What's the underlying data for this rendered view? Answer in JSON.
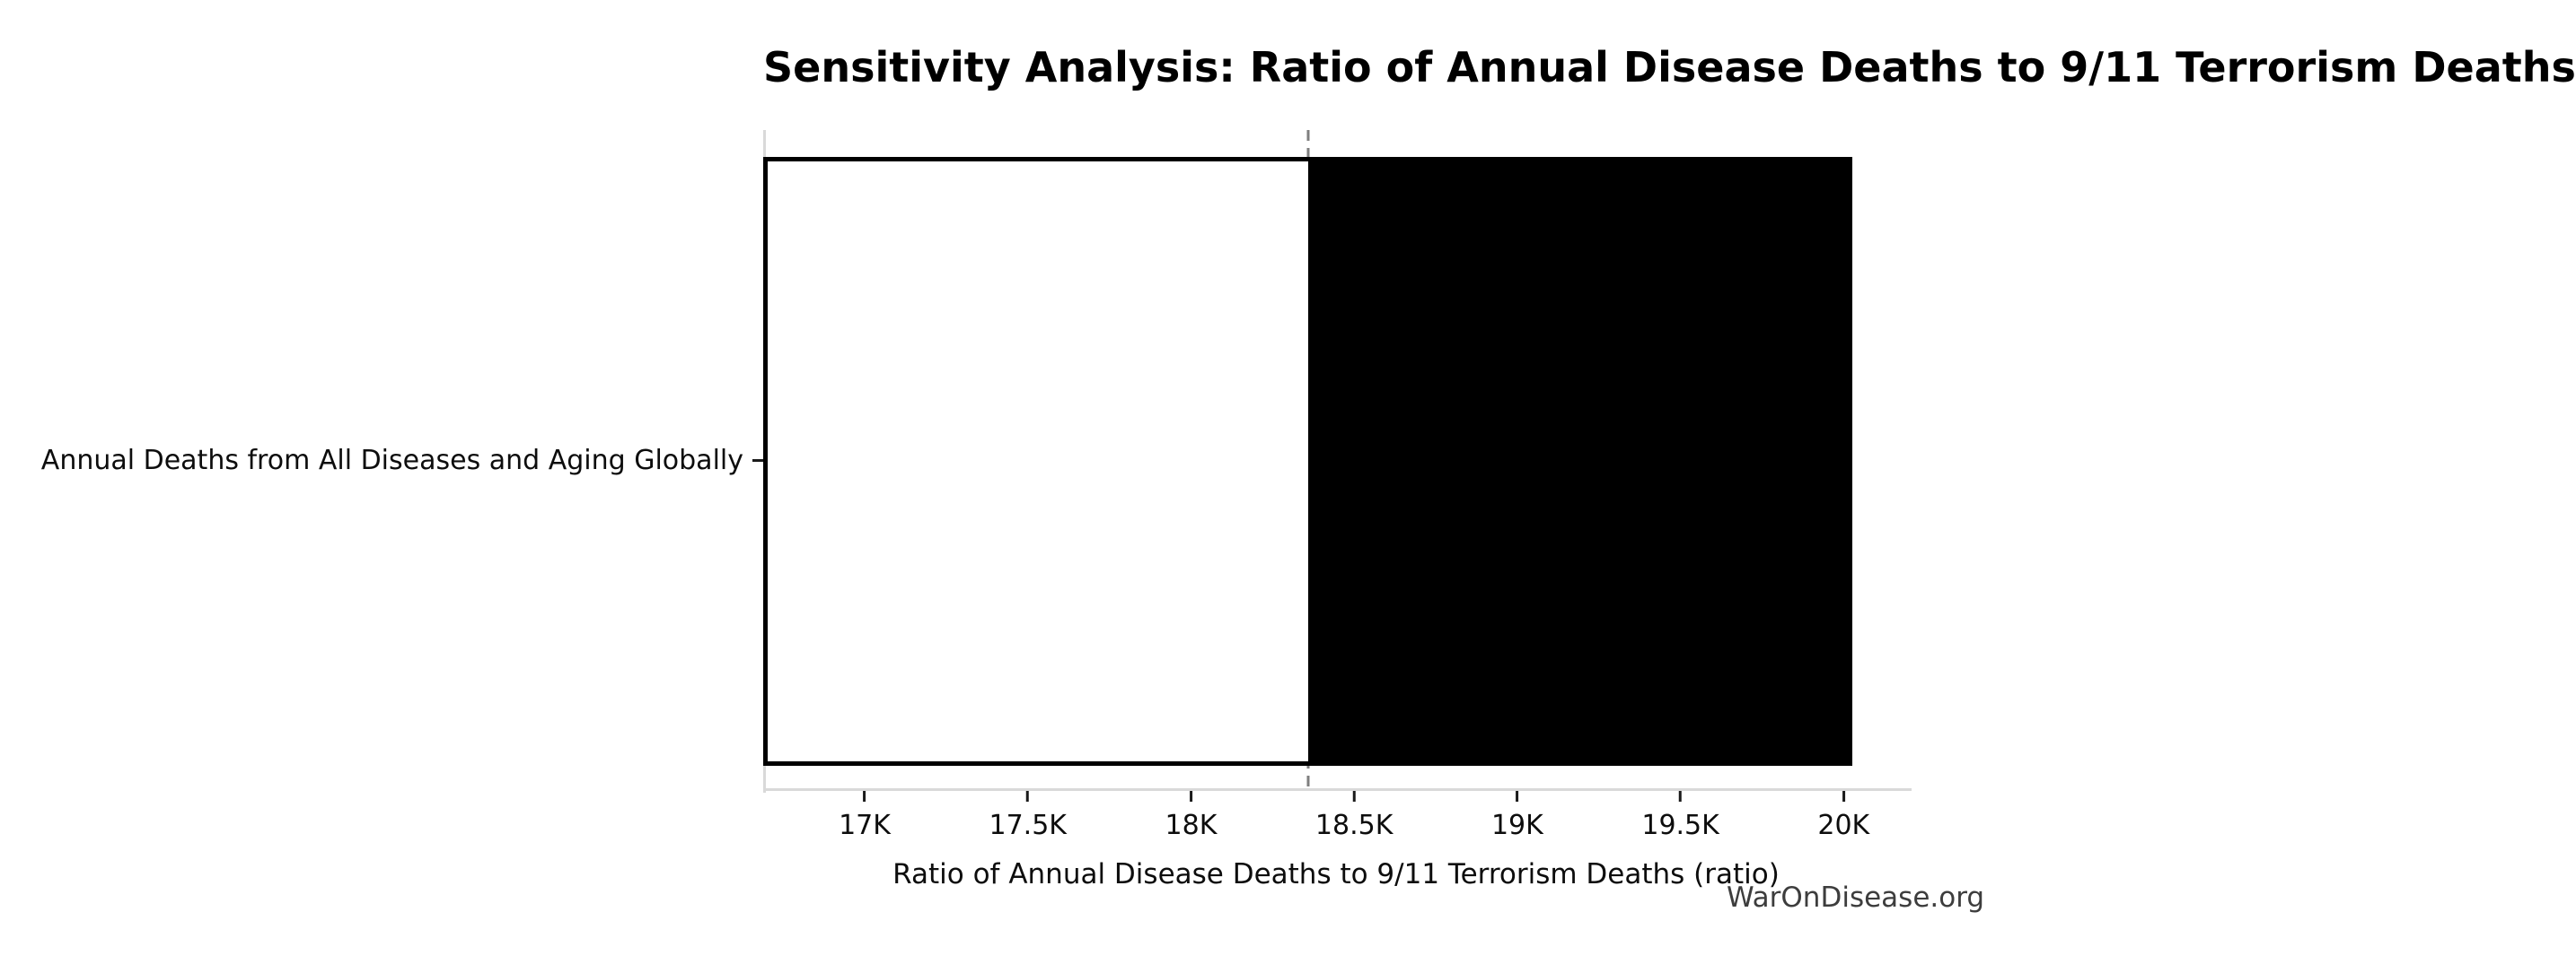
{
  "watermark": "WarOnDisease.org",
  "chart_data": {
    "type": "bar",
    "subtype": "tornado-sensitivity",
    "orientation": "horizontal",
    "title": "Sensitivity Analysis: Ratio of Annual Disease Deaths to 9/11 Terrorism Deaths",
    "xlabel": "Ratio of Annual Disease Deaths to 9/11 Terrorism Deaths (ratio)",
    "ylabel": "",
    "categories": [
      "Annual Deaths from All Diseases and Aging Globally"
    ],
    "bars": [
      {
        "category": "Annual Deaths from All Diseases and Aging Globally",
        "low": 16689,
        "base": 18358,
        "high": 20027
      }
    ],
    "baseline_value": 18358,
    "xlim": [
      16689,
      20200
    ],
    "xticks": [
      {
        "value": 17000,
        "label": "17K"
      },
      {
        "value": 17500,
        "label": "17.5K"
      },
      {
        "value": 18000,
        "label": "18K"
      },
      {
        "value": 18500,
        "label": "18.5K"
      },
      {
        "value": 19000,
        "label": "19K"
      },
      {
        "value": 19500,
        "label": "19.5K"
      },
      {
        "value": 20000,
        "label": "20K"
      }
    ],
    "grid": false,
    "legend": false,
    "colors": {
      "bar_low_fill": "#ffffff",
      "bar_low_edge": "#000000",
      "bar_high_fill": "#000000",
      "baseline": "#7f7f7f",
      "spine": "#d9d9d9",
      "tick": "#1a1a1a",
      "text": "#0d0d0d",
      "watermark": "#3d3d3d"
    }
  }
}
